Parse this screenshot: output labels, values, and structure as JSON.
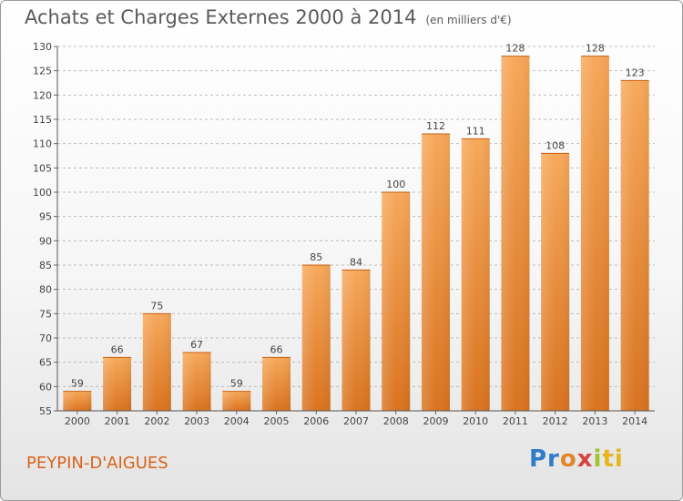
{
  "header": {
    "title": "Achats et Charges Externes 2000 à 2014",
    "unit": "(en milliers d'€)"
  },
  "footer": {
    "commune": "PEYPIN-D'AIGUES",
    "logo_parts": [
      "Pr",
      "o",
      "x",
      "i",
      "ti"
    ]
  },
  "colors": {
    "bar_top": "#f7a85a",
    "bar_bottom": "#d9731f",
    "accent": "#d9631a"
  },
  "chart_data": {
    "type": "bar",
    "categories": [
      "2000",
      "2001",
      "2002",
      "2003",
      "2004",
      "2005",
      "2006",
      "2007",
      "2008",
      "2009",
      "2010",
      "2011",
      "2012",
      "2013",
      "2014"
    ],
    "values": [
      59,
      66,
      75,
      67,
      59,
      66,
      85,
      84,
      100,
      112,
      111,
      128,
      108,
      128,
      123
    ],
    "title": "Achats et Charges Externes 2000 à 2014",
    "ylim": [
      55,
      130
    ],
    "yticks": [
      55,
      60,
      65,
      70,
      75,
      80,
      85,
      90,
      95,
      100,
      105,
      110,
      115,
      120,
      125,
      130
    ],
    "grid": true
  }
}
